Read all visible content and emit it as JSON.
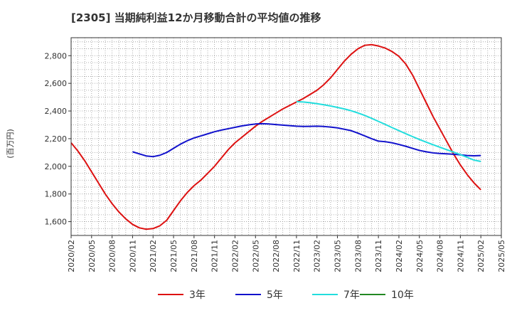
{
  "chart_data": {
    "type": "line",
    "title": "[2305]  当期純利益12か月移動合計の平均値の推移",
    "ylabel": "(百万円)",
    "xlabel": "",
    "ylim": [
      1500,
      2930
    ],
    "yticks": [
      1600,
      1800,
      2000,
      2200,
      2400,
      2600,
      2800
    ],
    "ytick_labels": [
      "1,600",
      "1,800",
      "2,000",
      "2,200",
      "2,400",
      "2,600",
      "2,800"
    ],
    "xticks": [
      "2020/02",
      "2020/05",
      "2020/08",
      "2020/11",
      "2021/02",
      "2021/05",
      "2021/08",
      "2021/11",
      "2022/02",
      "2022/05",
      "2022/08",
      "2022/11",
      "2023/02",
      "2023/05",
      "2023/08",
      "2023/11",
      "2024/02",
      "2024/05",
      "2024/08",
      "2024/11",
      "2025/02",
      "2025/05"
    ],
    "grid": true,
    "legend_position": "bottom",
    "series": [
      {
        "name": "3年",
        "color": "#dd1111",
        "points": [
          [
            "2020/02",
            2170
          ],
          [
            "2020/03",
            2110
          ],
          [
            "2020/04",
            2040
          ],
          [
            "2020/05",
            1960
          ],
          [
            "2020/06",
            1880
          ],
          [
            "2020/07",
            1800
          ],
          [
            "2020/08",
            1730
          ],
          [
            "2020/09",
            1670
          ],
          [
            "2020/10",
            1620
          ],
          [
            "2020/11",
            1580
          ],
          [
            "2020/12",
            1555
          ],
          [
            "2021/01",
            1545
          ],
          [
            "2021/02",
            1550
          ],
          [
            "2021/03",
            1570
          ],
          [
            "2021/04",
            1610
          ],
          [
            "2021/05",
            1680
          ],
          [
            "2021/06",
            1750
          ],
          [
            "2021/07",
            1810
          ],
          [
            "2021/08",
            1860
          ],
          [
            "2021/09",
            1900
          ],
          [
            "2021/10",
            1950
          ],
          [
            "2021/11",
            2000
          ],
          [
            "2021/12",
            2060
          ],
          [
            "2022/01",
            2120
          ],
          [
            "2022/02",
            2170
          ],
          [
            "2022/03",
            2210
          ],
          [
            "2022/04",
            2250
          ],
          [
            "2022/05",
            2290
          ],
          [
            "2022/06",
            2325
          ],
          [
            "2022/07",
            2355
          ],
          [
            "2022/08",
            2385
          ],
          [
            "2022/09",
            2415
          ],
          [
            "2022/10",
            2440
          ],
          [
            "2022/11",
            2465
          ],
          [
            "2022/12",
            2490
          ],
          [
            "2023/01",
            2520
          ],
          [
            "2023/02",
            2550
          ],
          [
            "2023/03",
            2590
          ],
          [
            "2023/04",
            2640
          ],
          [
            "2023/05",
            2700
          ],
          [
            "2023/06",
            2760
          ],
          [
            "2023/07",
            2810
          ],
          [
            "2023/08",
            2850
          ],
          [
            "2023/09",
            2875
          ],
          [
            "2023/10",
            2880
          ],
          [
            "2023/11",
            2870
          ],
          [
            "2023/12",
            2855
          ],
          [
            "2024/01",
            2830
          ],
          [
            "2024/02",
            2795
          ],
          [
            "2024/03",
            2740
          ],
          [
            "2024/04",
            2660
          ],
          [
            "2024/05",
            2560
          ],
          [
            "2024/06",
            2460
          ],
          [
            "2024/07",
            2360
          ],
          [
            "2024/08",
            2270
          ],
          [
            "2024/09",
            2180
          ],
          [
            "2024/10",
            2090
          ],
          [
            "2024/11",
            2010
          ],
          [
            "2024/12",
            1940
          ],
          [
            "2025/01",
            1880
          ],
          [
            "2025/02",
            1830
          ]
        ]
      },
      {
        "name": "5年",
        "color": "#1111cc",
        "points": [
          [
            "2020/11",
            2105
          ],
          [
            "2020/12",
            2090
          ],
          [
            "2021/01",
            2075
          ],
          [
            "2021/02",
            2070
          ],
          [
            "2021/03",
            2080
          ],
          [
            "2021/04",
            2100
          ],
          [
            "2021/05",
            2130
          ],
          [
            "2021/06",
            2160
          ],
          [
            "2021/07",
            2185
          ],
          [
            "2021/08",
            2205
          ],
          [
            "2021/09",
            2220
          ],
          [
            "2021/10",
            2235
          ],
          [
            "2021/11",
            2250
          ],
          [
            "2021/12",
            2262
          ],
          [
            "2022/01",
            2272
          ],
          [
            "2022/02",
            2282
          ],
          [
            "2022/03",
            2292
          ],
          [
            "2022/04",
            2300
          ],
          [
            "2022/05",
            2306
          ],
          [
            "2022/06",
            2308
          ],
          [
            "2022/07",
            2306
          ],
          [
            "2022/08",
            2302
          ],
          [
            "2022/09",
            2298
          ],
          [
            "2022/10",
            2294
          ],
          [
            "2022/11",
            2290
          ],
          [
            "2022/12",
            2288
          ],
          [
            "2023/01",
            2289
          ],
          [
            "2023/02",
            2290
          ],
          [
            "2023/03",
            2288
          ],
          [
            "2023/04",
            2284
          ],
          [
            "2023/05",
            2278
          ],
          [
            "2023/06",
            2268
          ],
          [
            "2023/07",
            2258
          ],
          [
            "2023/08",
            2240
          ],
          [
            "2023/09",
            2220
          ],
          [
            "2023/10",
            2200
          ],
          [
            "2023/11",
            2182
          ],
          [
            "2023/12",
            2178
          ],
          [
            "2024/01",
            2170
          ],
          [
            "2024/02",
            2158
          ],
          [
            "2024/03",
            2145
          ],
          [
            "2024/04",
            2130
          ],
          [
            "2024/05",
            2115
          ],
          [
            "2024/06",
            2105
          ],
          [
            "2024/07",
            2097
          ],
          [
            "2024/08",
            2093
          ],
          [
            "2024/09",
            2090
          ],
          [
            "2024/10",
            2087
          ],
          [
            "2024/11",
            2083
          ],
          [
            "2024/12",
            2078
          ],
          [
            "2025/01",
            2076
          ],
          [
            "2025/02",
            2078
          ]
        ]
      },
      {
        "name": "7年",
        "color": "#22dddd",
        "points": [
          [
            "2022/11",
            2468
          ],
          [
            "2022/12",
            2465
          ],
          [
            "2023/01",
            2460
          ],
          [
            "2023/02",
            2453
          ],
          [
            "2023/03",
            2445
          ],
          [
            "2023/04",
            2436
          ],
          [
            "2023/05",
            2426
          ],
          [
            "2023/06",
            2415
          ],
          [
            "2023/07",
            2402
          ],
          [
            "2023/08",
            2386
          ],
          [
            "2023/09",
            2368
          ],
          [
            "2023/10",
            2347
          ],
          [
            "2023/11",
            2325
          ],
          [
            "2023/12",
            2303
          ],
          [
            "2024/01",
            2280
          ],
          [
            "2024/02",
            2258
          ],
          [
            "2024/03",
            2236
          ],
          [
            "2024/04",
            2215
          ],
          [
            "2024/05",
            2194
          ],
          [
            "2024/06",
            2175
          ],
          [
            "2024/07",
            2156
          ],
          [
            "2024/08",
            2138
          ],
          [
            "2024/09",
            2120
          ],
          [
            "2024/10",
            2103
          ],
          [
            "2024/11",
            2085
          ],
          [
            "2024/12",
            2065
          ],
          [
            "2025/01",
            2045
          ],
          [
            "2025/02",
            2035
          ]
        ]
      },
      {
        "name": "10年",
        "color": "#228822",
        "points": []
      }
    ]
  }
}
